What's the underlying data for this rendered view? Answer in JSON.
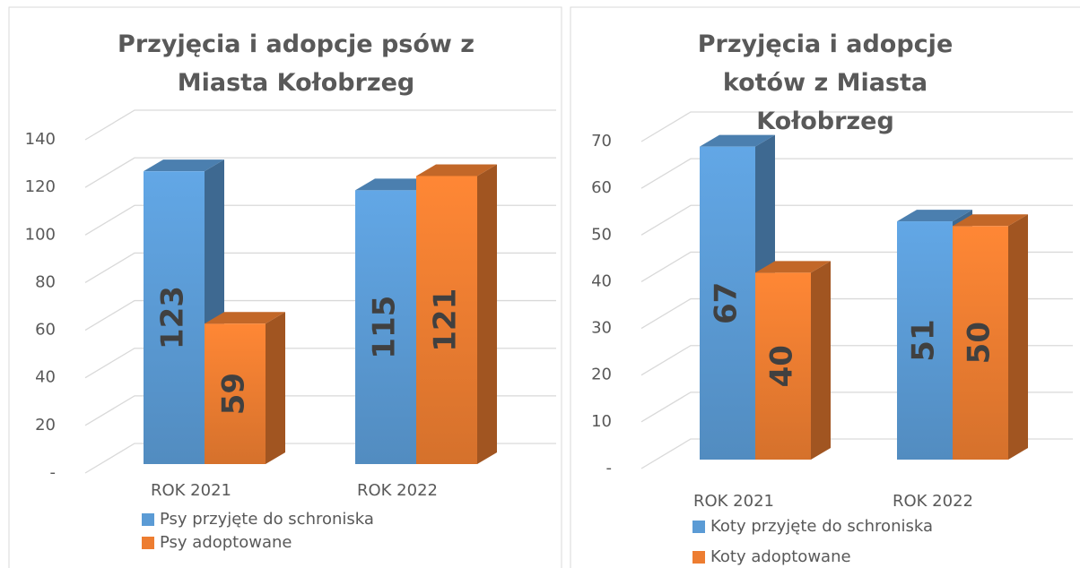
{
  "chart_data": [
    {
      "type": "bar3d",
      "title": "Przyjęcia i adopcje psów z Miasta Kołobrzeg",
      "categories": [
        "ROK 2021",
        "ROK 2022"
      ],
      "series": [
        {
          "name": "Psy przyjęte do schroniska",
          "color": "#5b9bd5",
          "values": [
            123,
            115
          ]
        },
        {
          "name": "Psy adoptowane",
          "color": "#ed7d31",
          "values": [
            59,
            121
          ]
        }
      ],
      "ylim": [
        0,
        140
      ],
      "yticks": [
        {
          "value": 0,
          "label": "-"
        },
        20,
        40,
        60,
        80,
        100,
        120,
        140
      ],
      "grid": true
    },
    {
      "type": "bar3d",
      "title": "Przyjęcia i adopcje kotów z Miasta Kołobrzeg",
      "categories": [
        "ROK 2021",
        "ROK 2022"
      ],
      "series": [
        {
          "name": "Koty przyjęte do schroniska",
          "color": "#5b9bd5",
          "values": [
            67,
            51
          ]
        },
        {
          "name": "Koty adoptowane",
          "color": "#ed7d31",
          "values": [
            40,
            50
          ]
        }
      ],
      "ylim": [
        0,
        70
      ],
      "yticks": [
        {
          "value": 0,
          "label": "-"
        },
        10,
        20,
        30,
        40,
        50,
        60,
        70
      ],
      "grid": true
    }
  ]
}
